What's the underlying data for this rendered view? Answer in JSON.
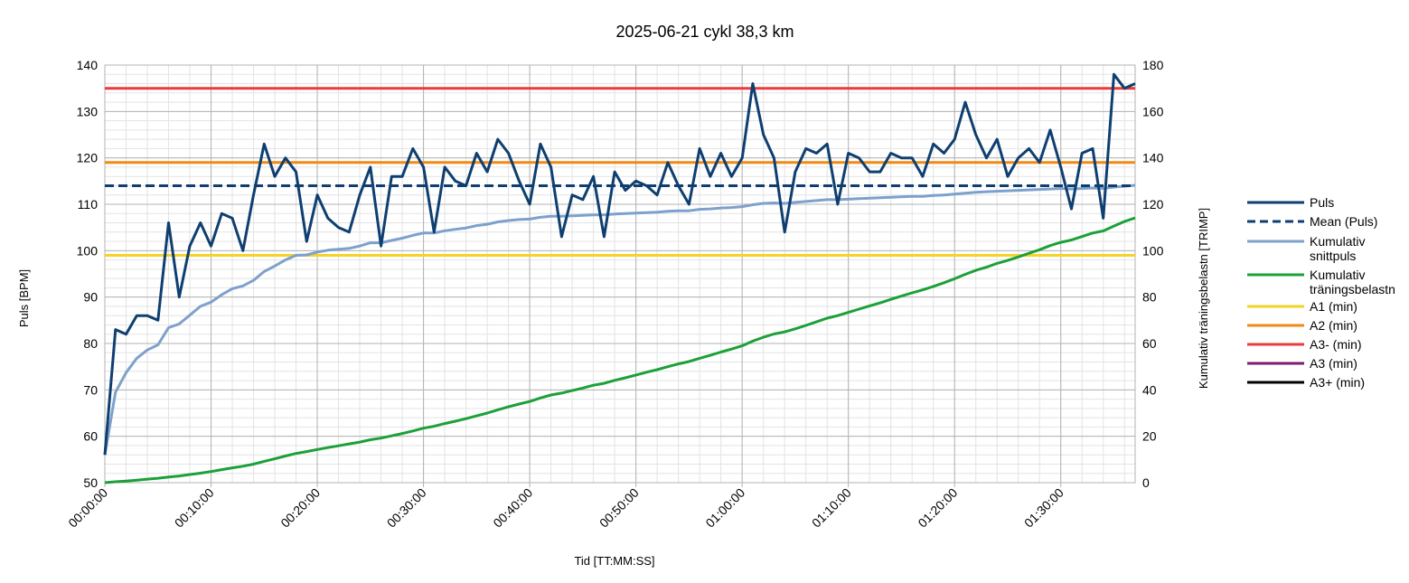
{
  "chart_data": {
    "type": "line",
    "title": "2025-06-21 cykl 38,3 km",
    "xlabel": "Tid [TT:MM:SS]",
    "ylabel": "Puls [BPM]",
    "y2label": "Kumulativ träningsbelastn [TRIMP]",
    "xlim_minutes": [
      0,
      97
    ],
    "ylim": [
      50,
      140
    ],
    "y2lim": [
      0,
      180
    ],
    "grid": true,
    "legend_position": "right",
    "x_tick_labels": [
      "00:00:00",
      "00:10:00",
      "00:20:00",
      "00:30:00",
      "00:40:00",
      "00:50:00",
      "01:00:00",
      "01:10:00",
      "01:20:00",
      "01:30:00"
    ],
    "y_ticks": [
      50,
      60,
      70,
      80,
      90,
      100,
      110,
      120,
      130,
      140
    ],
    "y2_ticks": [
      0,
      20,
      40,
      60,
      80,
      100,
      120,
      140,
      160,
      180
    ],
    "x_minutes": [
      0,
      1,
      2,
      3,
      4,
      5,
      6,
      7,
      8,
      9,
      10,
      11,
      12,
      13,
      14,
      15,
      16,
      17,
      18,
      19,
      20,
      21,
      22,
      23,
      24,
      25,
      26,
      27,
      28,
      29,
      30,
      31,
      32,
      33,
      34,
      35,
      36,
      37,
      38,
      39,
      40,
      41,
      42,
      43,
      44,
      45,
      46,
      47,
      48,
      49,
      50,
      51,
      52,
      53,
      54,
      55,
      56,
      57,
      58,
      59,
      60,
      61,
      62,
      63,
      64,
      65,
      66,
      67,
      68,
      69,
      70,
      71,
      72,
      73,
      74,
      75,
      76,
      77,
      78,
      79,
      80,
      81,
      82,
      83,
      84,
      85,
      86,
      87,
      88,
      89,
      90,
      91,
      92,
      93,
      94,
      95,
      96,
      97
    ],
    "series": [
      {
        "name": "Puls",
        "axis": "left",
        "color": "#0e3f70",
        "style": "solid",
        "values": [
          56,
          83,
          82,
          86,
          86,
          85,
          106,
          90,
          101,
          106,
          101,
          108,
          107,
          100,
          112,
          123,
          116,
          120,
          117,
          102,
          112,
          107,
          105,
          104,
          112,
          118,
          101,
          116,
          116,
          122,
          118,
          104,
          118,
          115,
          114,
          121,
          117,
          124,
          121,
          115,
          110,
          123,
          118,
          103,
          112,
          111,
          116,
          103,
          117,
          113,
          115,
          114,
          112,
          119,
          114,
          110,
          122,
          116,
          121,
          116,
          120,
          136,
          125,
          120,
          104,
          117,
          122,
          121,
          123,
          110,
          121,
          120,
          117,
          117,
          121,
          120,
          120,
          116,
          123,
          121,
          124,
          132,
          125,
          120,
          124,
          116,
          120,
          122,
          119,
          126,
          118,
          109,
          121,
          122,
          107,
          138,
          135,
          136
        ]
      },
      {
        "name": "Mean (Puls)",
        "axis": "left",
        "color": "#0e3f70",
        "style": "dashed",
        "values": [
          114,
          114
        ]
      },
      {
        "name": "Kumulativ snittpuls",
        "axis": "left",
        "color": "#7da1cc",
        "style": "solid",
        "values": [
          56,
          69.5,
          73.7,
          76.8,
          78.6,
          79.7,
          83.4,
          84.2,
          86.1,
          88,
          88.9,
          90.5,
          91.8,
          92.4,
          93.6,
          95.5,
          96.7,
          98.0,
          99.0,
          99.1,
          99.7,
          100.1,
          100.3,
          100.5,
          101.0,
          101.7,
          101.7,
          102.2,
          102.7,
          103.3,
          103.8,
          103.8,
          104.3,
          104.6,
          104.9,
          105.4,
          105.7,
          106.2,
          106.5,
          106.7,
          106.8,
          107.2,
          107.4,
          107.4,
          107.5,
          107.6,
          107.7,
          107.7,
          107.9,
          108.0,
          108.1,
          108.2,
          108.3,
          108.5,
          108.6,
          108.6,
          108.9,
          109.0,
          109.2,
          109.3,
          109.5,
          109.9,
          110.2,
          110.3,
          110.2,
          110.4,
          110.6,
          110.8,
          111.0,
          111.0,
          111.1,
          111.2,
          111.3,
          111.4,
          111.5,
          111.6,
          111.7,
          111.7,
          111.9,
          112.0,
          112.2,
          112.4,
          112.6,
          112.7,
          112.8,
          112.9,
          113.0,
          113.1,
          113.2,
          113.3,
          113.4,
          113.3,
          113.4,
          113.5,
          113.4,
          113.7,
          113.9,
          114.1
        ]
      },
      {
        "name": "Kumulativ träningsbelastn",
        "axis": "right",
        "color": "#1ca038",
        "style": "solid",
        "values": [
          0,
          0.4,
          0.7,
          1.1,
          1.5,
          1.9,
          2.4,
          2.9,
          3.5,
          4.1,
          4.8,
          5.6,
          6.4,
          7.1,
          8.0,
          9.2,
          10.3,
          11.5,
          12.6,
          13.4,
          14.3,
          15.1,
          15.9,
          16.7,
          17.5,
          18.5,
          19.2,
          20.2,
          21.2,
          22.3,
          23.5,
          24.3,
          25.5,
          26.5,
          27.6,
          28.8,
          30.0,
          31.4,
          32.7,
          33.9,
          35.0,
          36.5,
          37.8,
          38.6,
          39.7,
          40.8,
          42.0,
          42.8,
          44.1,
          45.2,
          46.4,
          47.6,
          48.7,
          50.0,
          51.2,
          52.2,
          53.6,
          54.9,
          56.3,
          57.6,
          59.0,
          61.0,
          62.7,
          64.1,
          65.0,
          66.3,
          67.8,
          69.3,
          70.9,
          72.0,
          73.4,
          74.8,
          76.2,
          77.5,
          79.0,
          80.4,
          81.8,
          83.1,
          84.6,
          86.2,
          87.9,
          89.8,
          91.5,
          92.9,
          94.5,
          95.8,
          97.3,
          98.9,
          100.4,
          102.2,
          103.6,
          104.6,
          106.1,
          107.6,
          108.5,
          110.6,
          112.6,
          114.1
        ]
      },
      {
        "name": "A1 (min)",
        "axis": "left",
        "color": "#f5d328",
        "style": "solid",
        "values": [
          99,
          99
        ]
      },
      {
        "name": "A2 (min)",
        "axis": "left",
        "color": "#f08a16",
        "style": "solid",
        "values": [
          119,
          119
        ]
      },
      {
        "name": "A3- (min)",
        "axis": "left",
        "color": "#ee3a3a",
        "style": "solid",
        "values": [
          135,
          135
        ]
      },
      {
        "name": "A3 (min)",
        "axis": "left",
        "color": "#7b1f6e",
        "style": "solid",
        "values": []
      },
      {
        "name": "A3+ (min)",
        "axis": "left",
        "color": "#000000",
        "style": "solid",
        "values": []
      }
    ]
  }
}
